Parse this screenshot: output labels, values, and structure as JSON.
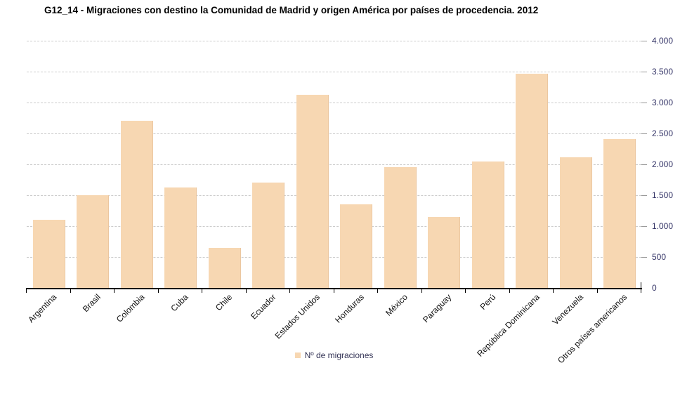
{
  "title": "G12_14 - Migraciones con destino la Comunidad de Madrid y origen América por países de procedencia. 2012",
  "legend": {
    "label": "Nº de migraciones"
  },
  "colors": {
    "bar_fill": "#f7d7b2",
    "gridline": "#cccccc",
    "axis": "#000000",
    "y_tick_label": "#333366",
    "x_tick_label": "#111111",
    "title_text": "#000000"
  },
  "chart_data": {
    "type": "bar",
    "title": "G12_14 - Migraciones con destino la Comunidad de Madrid y origen América por países de procedencia. 2012",
    "series_name": "Nº de migraciones",
    "categories": [
      "Argentina",
      "Brasil",
      "Colombia",
      "Cuba",
      "Chile",
      "Ecuador",
      "Estados Unidos",
      "Honduras",
      "México",
      "Paraguay",
      "Perú",
      "República Dominicana",
      "Venezuela",
      "Otros países americanos"
    ],
    "values": [
      1100,
      1500,
      2710,
      1630,
      650,
      1700,
      3120,
      1350,
      1950,
      1150,
      2050,
      3470,
      2110,
      2410
    ],
    "xlabel": "",
    "ylabel": "",
    "ylim": [
      0,
      4000
    ],
    "y_ticks": [
      0,
      500,
      1000,
      1500,
      2000,
      2500,
      3000,
      3500,
      4000
    ],
    "y_tick_labels": [
      "0",
      "500",
      "1.000",
      "1.500",
      "2.000",
      "2.500",
      "3.000",
      "3.500",
      "4.000"
    ],
    "grid": "horizontal-dashed",
    "legend_position": "bottom-center",
    "x_labels_rotation_deg": -45,
    "y_axis_side": "right"
  }
}
